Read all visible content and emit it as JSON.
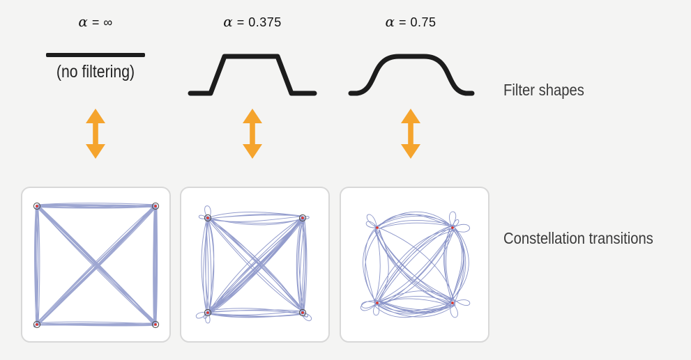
{
  "columns": [
    {
      "id": "alpha-infinity",
      "alpha_symbol": "α",
      "alpha_value": "= ∞",
      "filter_shape": "flat-line",
      "filter_note": "(no filtering)"
    },
    {
      "id": "alpha-0375",
      "alpha_symbol": "α",
      "alpha_value": "= 0.375",
      "filter_shape": "trapezoid-rolloff"
    },
    {
      "id": "alpha-075",
      "alpha_symbol": "α",
      "alpha_value": "= 0.75",
      "filter_shape": "smooth-rolloff"
    }
  ],
  "row_labels": {
    "filters": "Filter shapes",
    "constellations": "Constellation transitions"
  },
  "icons": {
    "column_link": "double-vertical-arrow-icon"
  },
  "colors": {
    "background": "#f4f4f3",
    "panel_bg": "#ffffff",
    "panel_border": "#d8d8d8",
    "ink": "#1c1c1c",
    "text": "#222222",
    "label_text": "#3a3a3a",
    "accent_orange": "#f5a42d",
    "trace_blue": "#3c4da4",
    "marker_red": "#e03024",
    "marker_ring": "#4a4a4a"
  }
}
